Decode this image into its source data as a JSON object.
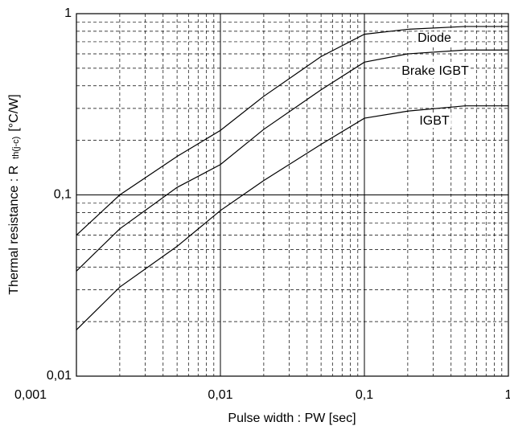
{
  "chart_data": {
    "type": "line",
    "xlabel": "Pulse width : PW [sec]",
    "ylabel": "Thermal resistance : R",
    "ylabel_sub": "th(j-c)",
    "ylabel_unit": "[°C/W]",
    "xscale": "log",
    "yscale": "log",
    "grid": true,
    "minor_grid": true,
    "xlim": [
      0.001,
      1
    ],
    "ylim": [
      0.01,
      1
    ],
    "xticks": [
      {
        "value": 0.001,
        "label": "0,001"
      },
      {
        "value": 0.01,
        "label": "0,01"
      },
      {
        "value": 0.1,
        "label": "0,1"
      },
      1
    ],
    "yticks": [
      {
        "value": 0.01,
        "label": "0,01"
      },
      {
        "value": 0.1,
        "label": "0,1"
      },
      1
    ],
    "x": [
      0.001,
      0.002,
      0.005,
      0.01,
      0.02,
      0.05,
      0.1,
      0.2,
      0.5,
      1
    ],
    "series": [
      {
        "name": "Diode",
        "color": "#000000",
        "values": [
          0.06,
          0.1,
          0.163,
          0.227,
          0.35,
          0.58,
          0.77,
          0.82,
          0.85,
          0.85
        ]
      },
      {
        "name": "Brake IGBT",
        "color": "#000000",
        "values": [
          0.038,
          0.065,
          0.11,
          0.147,
          0.23,
          0.38,
          0.54,
          0.6,
          0.63,
          0.63
        ]
      },
      {
        "name": "IGBT",
        "color": "#000000",
        "values": [
          0.018,
          0.031,
          0.052,
          0.082,
          0.12,
          0.19,
          0.265,
          0.29,
          0.31,
          0.31
        ]
      }
    ]
  }
}
